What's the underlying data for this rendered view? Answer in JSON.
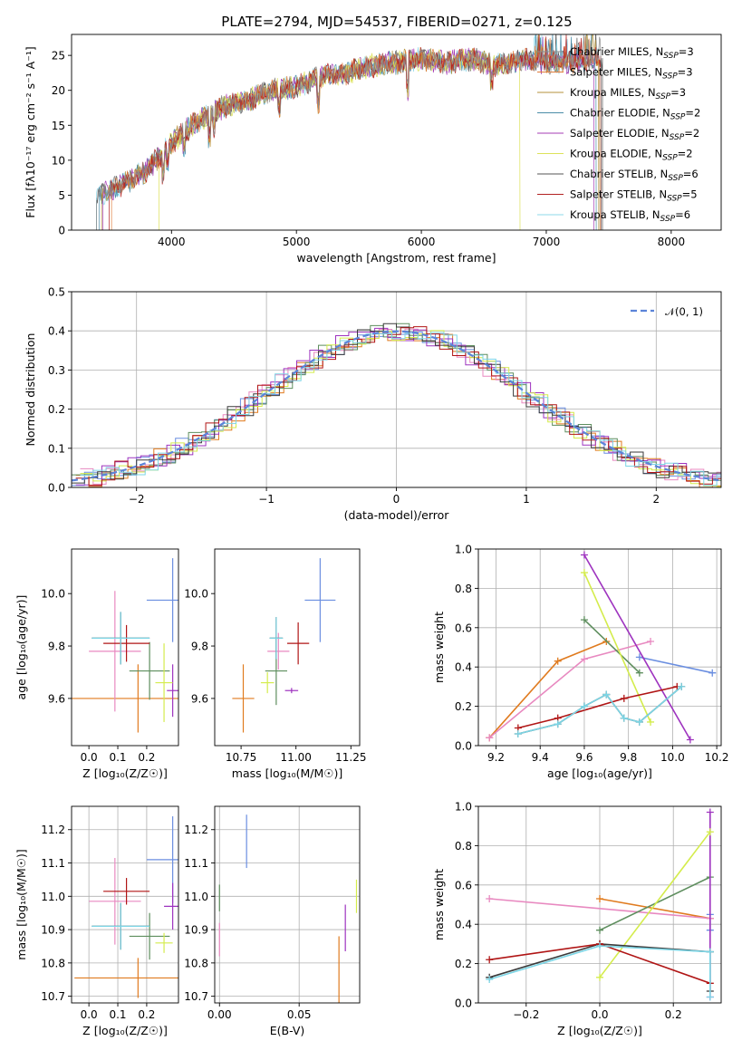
{
  "title": "PLATE=2794, MJD=54537, FIBERID=0271, z=0.125",
  "colors": [
    "#8c8c8c",
    "#e07b39",
    "#b5923b",
    "#4a8ca8",
    "#a63db5",
    "#dde25a",
    "#555555",
    "#b22222",
    "#8ed8ea"
  ],
  "model_colors": [
    "#6a8ee0",
    "#e07b1f",
    "#e889c0",
    "#5e8e5e",
    "#9e33bf",
    "#d4ec4c",
    "#3a3a3a",
    "#b01515",
    "#7cd6e6"
  ],
  "chart_data": [
    {
      "type": "line",
      "xlabel": "wavelength [Angstrom, rest frame]",
      "ylabel": "Flux [fλ10⁻¹⁷ erg cm⁻² s⁻¹ A⁻¹]",
      "xlim": [
        3200,
        8400
      ],
      "ylim": [
        0,
        28
      ],
      "xticks": [
        4000,
        5000,
        6000,
        7000,
        8000
      ],
      "yticks": [
        0,
        5,
        10,
        15,
        20,
        25
      ],
      "legend_position": "top-right",
      "legend": [
        {
          "base": "Chabrier MILES, N",
          "sub": "SSP",
          "tail": "=3"
        },
        {
          "base": "Salpeter MILES, N",
          "sub": "SSP",
          "tail": "=3"
        },
        {
          "base": "Kroupa MILES, N",
          "sub": "SSP",
          "tail": "=3"
        },
        {
          "base": "Chabrier ELODIE, N",
          "sub": "SSP",
          "tail": "=2"
        },
        {
          "base": "Salpeter ELODIE, N",
          "sub": "SSP",
          "tail": "=2"
        },
        {
          "base": "Kroupa ELODIE, N",
          "sub": "SSP",
          "tail": "=2"
        },
        {
          "base": "Chabrier STELIB, N",
          "sub": "SSP",
          "tail": "=6"
        },
        {
          "base": "Salpeter STELIB, N",
          "sub": "SSP",
          "tail": "=5"
        },
        {
          "base": "Kroupa STELIB, N",
          "sub": "SSP",
          "tail": "=6"
        }
      ],
      "continuum": [
        [
          3400,
          4.8
        ],
        [
          3600,
          6.5
        ],
        [
          3800,
          8.5
        ],
        [
          4000,
          12.5
        ],
        [
          4200,
          15.5
        ],
        [
          4400,
          17.5
        ],
        [
          4600,
          18.5
        ],
        [
          4800,
          20
        ],
        [
          5000,
          20.5
        ],
        [
          5200,
          22
        ],
        [
          5400,
          22.5
        ],
        [
          5600,
          23.5
        ],
        [
          5800,
          24
        ],
        [
          6000,
          24.5
        ],
        [
          6200,
          24
        ],
        [
          6400,
          24.5
        ],
        [
          6600,
          23.5
        ],
        [
          6800,
          24.5
        ],
        [
          7000,
          24
        ],
        [
          7200,
          24
        ],
        [
          7400,
          24.5
        ],
        [
          7700,
          23.5
        ],
        [
          8000,
          23.5
        ]
      ]
    },
    {
      "type": "line",
      "xlabel": "(data-model)/error",
      "ylabel": "Normed distribution",
      "xlim": [
        -2.5,
        2.5
      ],
      "ylim": [
        0,
        0.5
      ],
      "xticks": [
        -2,
        -1,
        0,
        1,
        2
      ],
      "yticks": [
        0.0,
        0.1,
        0.2,
        0.3,
        0.4,
        0.5
      ],
      "legend_position": "top-right",
      "legend": [
        {
          "label": "𝒩(0, 1)"
        }
      ],
      "series": [
        {
          "name": "𝒩(0, 1)",
          "distribution": "normal",
          "mean": 0,
          "sigma": 1
        }
      ]
    },
    {
      "type": "scatter",
      "xlabel": "Z [log₁₀(Z/Z☉)]",
      "ylabel": "age  [log₁₀(age/yr)]",
      "xlim": [
        -0.06,
        0.31
      ],
      "ylim": [
        9.42,
        10.17
      ],
      "xticks": [
        0.0,
        0.1,
        0.2
      ],
      "yticks": [
        9.6,
        9.8,
        10.0
      ],
      "points": [
        {
          "x": 0.29,
          "y": 9.975,
          "xerr": 0.09,
          "yerr": 0.16
        },
        {
          "x": 0.17,
          "y": 9.6,
          "xerr": 0.27,
          "yerr": 0.13
        },
        {
          "x": 0.09,
          "y": 9.78,
          "xerr": 0.09,
          "yerr": 0.23
        },
        {
          "x": 0.21,
          "y": 9.705,
          "xerr": 0.07,
          "yerr": 0.11
        },
        {
          "x": 0.29,
          "y": 9.63,
          "xerr": 0.02,
          "yerr": 0.1
        },
        {
          "x": 0.26,
          "y": 9.66,
          "xerr": 0.03,
          "yerr": 0.15
        },
        {
          "x": 0.11,
          "y": 9.83,
          "xerr": 0.1,
          "yerr": 0.1
        },
        {
          "x": 0.13,
          "y": 9.81,
          "xerr": 0.08,
          "yerr": 0.07
        },
        {
          "x": 0.11,
          "y": 9.83,
          "xerr": 0.1,
          "yerr": 0.1
        }
      ]
    },
    {
      "type": "scatter",
      "xlabel": "mass [log₁₀(M/M☉)]",
      "ylabel": "",
      "xlim": [
        10.63,
        11.29
      ],
      "ylim": [
        9.42,
        10.17
      ],
      "xticks": [
        10.75,
        11.0,
        11.25
      ],
      "yticks": [
        9.6,
        9.8,
        10.0
      ],
      "points": [
        {
          "x": 11.11,
          "y": 9.975,
          "xerr": 0.07,
          "yerr": 0.16
        },
        {
          "x": 10.76,
          "y": 9.6,
          "xerr": 0.05,
          "yerr": 0.13
        },
        {
          "x": 10.92,
          "y": 9.78,
          "xerr": 0.05,
          "yerr": 0.07
        },
        {
          "x": 10.91,
          "y": 9.705,
          "xerr": 0.05,
          "yerr": 0.13
        },
        {
          "x": 10.98,
          "y": 9.63,
          "xerr": 0.03,
          "yerr": 0.01
        },
        {
          "x": 10.87,
          "y": 9.66,
          "xerr": 0.03,
          "yerr": 0.04
        },
        {
          "x": 10.91,
          "y": 9.83,
          "xerr": 0.03,
          "yerr": 0.08
        },
        {
          "x": 11.01,
          "y": 9.81,
          "xerr": 0.05,
          "yerr": 0.08
        },
        {
          "x": 10.91,
          "y": 9.83,
          "xerr": 0.03,
          "yerr": 0.08
        }
      ]
    },
    {
      "type": "line",
      "xlabel": "age  [log₁₀(age/yr)]",
      "ylabel": "mass weight",
      "xlim": [
        9.12,
        10.22
      ],
      "ylim": [
        0,
        1
      ],
      "xticks": [
        9.2,
        9.4,
        9.6,
        9.8,
        10.0,
        10.2
      ],
      "yticks": [
        0.0,
        0.2,
        0.4,
        0.6,
        0.8,
        1.0
      ],
      "series": [
        {
          "x": [
            9.85,
            10.18
          ],
          "y": [
            0.45,
            0.37
          ]
        },
        {
          "x": [
            9.17,
            9.48,
            9.7
          ],
          "y": [
            0.04,
            0.43,
            0.53
          ]
        },
        {
          "x": [
            9.17,
            9.6,
            9.9
          ],
          "y": [
            0.04,
            0.44,
            0.53
          ]
        },
        {
          "x": [
            9.6,
            9.85
          ],
          "y": [
            0.64,
            0.37
          ]
        },
        {
          "x": [
            9.6,
            10.08
          ],
          "y": [
            0.97,
            0.03
          ]
        },
        {
          "x": [
            9.6,
            9.9
          ],
          "y": [
            0.88,
            0.12
          ]
        },
        {
          "x": [
            9.3,
            9.48,
            9.6,
            9.7,
            9.78,
            9.85,
            10.04
          ],
          "y": [
            0.06,
            0.11,
            0.2,
            0.26,
            0.14,
            0.12,
            0.3
          ]
        },
        {
          "x": [
            9.3,
            9.48,
            9.78,
            10.02
          ],
          "y": [
            0.09,
            0.14,
            0.24,
            0.3
          ]
        },
        {
          "x": [
            9.3,
            9.48,
            9.6,
            9.7,
            9.78,
            9.85,
            10.04
          ],
          "y": [
            0.06,
            0.11,
            0.2,
            0.26,
            0.14,
            0.12,
            0.3
          ]
        }
      ]
    },
    {
      "type": "scatter",
      "xlabel": "Z [log₁₀(Z/Z☉)]",
      "ylabel": "mass [log₁₀(M/M☉)]",
      "xlim": [
        -0.06,
        0.31
      ],
      "ylim": [
        10.68,
        11.27
      ],
      "xticks": [
        0.0,
        0.1,
        0.2
      ],
      "yticks": [
        10.7,
        10.8,
        10.9,
        11.0,
        11.1,
        11.2
      ],
      "points": [
        {
          "x": 0.29,
          "y": 11.11,
          "xerr": 0.09,
          "yerr": 0.13
        },
        {
          "x": 0.17,
          "y": 10.755,
          "xerr": 0.22,
          "yerr": 0.06
        },
        {
          "x": 0.09,
          "y": 10.985,
          "xerr": 0.09,
          "yerr": 0.13
        },
        {
          "x": 0.21,
          "y": 10.88,
          "xerr": 0.07,
          "yerr": 0.07
        },
        {
          "x": 0.29,
          "y": 10.97,
          "xerr": 0.03,
          "yerr": 0.07
        },
        {
          "x": 0.26,
          "y": 10.86,
          "xerr": 0.03,
          "yerr": 0.03
        },
        {
          "x": 0.11,
          "y": 10.91,
          "xerr": 0.1,
          "yerr": 0.07
        },
        {
          "x": 0.13,
          "y": 11.015,
          "xerr": 0.08,
          "yerr": 0.04
        },
        {
          "x": 0.11,
          "y": 10.91,
          "xerr": 0.1,
          "yerr": 0.07
        }
      ]
    },
    {
      "type": "scatter",
      "xlabel": "E(B-V)",
      "ylabel": "",
      "xlim": [
        -0.003,
        0.088
      ],
      "ylim": [
        10.68,
        11.27
      ],
      "xticks": [
        0.0,
        0.05
      ],
      "yticks": [
        10.7,
        10.8,
        10.9,
        11.0,
        11.1,
        11.2
      ],
      "points": [
        {
          "x": 0.017,
          "y": 11.165,
          "yerr": 0.08
        },
        {
          "x": 0.075,
          "y": 10.78,
          "yerr": 0.1
        },
        {
          "x": 0.0,
          "y": 10.87,
          "yerr": 0.05
        },
        {
          "x": 0.0,
          "y": 10.995,
          "yerr": 0.04
        },
        {
          "x": 0.079,
          "y": 10.905,
          "yerr": 0.07
        },
        {
          "x": 0.086,
          "y": 11.0,
          "yerr": 0.05
        }
      ]
    },
    {
      "type": "line",
      "xlabel": "Z [log₁₀(Z/Z☉)]",
      "ylabel": "mass weight",
      "xlim": [
        -0.33,
        0.33
      ],
      "ylim": [
        0,
        1
      ],
      "xticks": [
        -0.2,
        0.0,
        0.2
      ],
      "yticks": [
        0.0,
        0.2,
        0.4,
        0.6,
        0.8,
        1.0
      ],
      "series": [
        {
          "x": [
            0.3,
            0.3
          ],
          "y": [
            0.37,
            0.45
          ]
        },
        {
          "x": [
            0.0,
            0.3
          ],
          "y": [
            0.53,
            0.43
          ]
        },
        {
          "x": [
            -0.3,
            0.3
          ],
          "y": [
            0.53,
            0.43
          ]
        },
        {
          "x": [
            0.0,
            0.3
          ],
          "y": [
            0.37,
            0.64
          ]
        },
        {
          "x": [
            0.3,
            0.3
          ],
          "y": [
            0.03,
            0.97
          ]
        },
        {
          "x": [
            0.0,
            0.3
          ],
          "y": [
            0.13,
            0.87
          ]
        },
        {
          "x": [
            -0.3,
            0.0,
            0.3,
            0.3
          ],
          "y": [
            0.13,
            0.3,
            0.26,
            0.06
          ]
        },
        {
          "x": [
            -0.3,
            0.0,
            0.3
          ],
          "y": [
            0.22,
            0.3,
            0.1
          ]
        },
        {
          "x": [
            -0.3,
            0.0,
            0.3,
            0.3
          ],
          "y": [
            0.12,
            0.29,
            0.26,
            0.03
          ]
        }
      ]
    }
  ]
}
